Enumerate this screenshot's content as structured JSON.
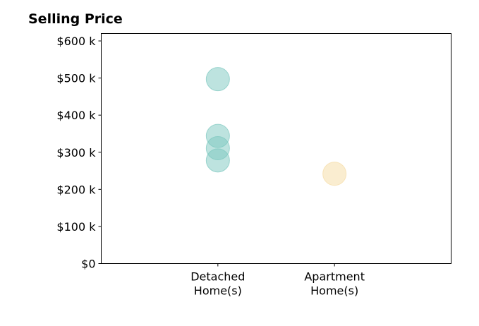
{
  "chart_data": {
    "type": "scatter",
    "title": "Selling Price",
    "xlabel": "",
    "ylabel": "",
    "categories": [
      {
        "lines": [
          "Detached",
          "Home(s)"
        ]
      },
      {
        "lines": [
          "Apartment",
          "Home(s)"
        ]
      }
    ],
    "xlim": [
      0,
      3
    ],
    "category_x": [
      1,
      2
    ],
    "ylim": [
      0,
      620000
    ],
    "yticks": [
      0,
      100000,
      200000,
      300000,
      400000,
      500000,
      600000
    ],
    "ytick_labels": [
      "$0",
      "$100 k",
      "$200 k",
      "$300 k",
      "$400 k",
      "$500 k",
      "$600 k"
    ],
    "grid": false,
    "series": [
      {
        "color": "#7cc8bf",
        "opacity": 0.5,
        "points": [
          {
            "category": 0,
            "value": 497000
          },
          {
            "category": 0,
            "value": 344000
          },
          {
            "category": 0,
            "value": 311000
          },
          {
            "category": 0,
            "value": 278000
          }
        ]
      },
      {
        "color": "#f5deaa",
        "opacity": 0.55,
        "points": [
          {
            "category": 1,
            "value": 242000
          }
        ]
      }
    ]
  }
}
